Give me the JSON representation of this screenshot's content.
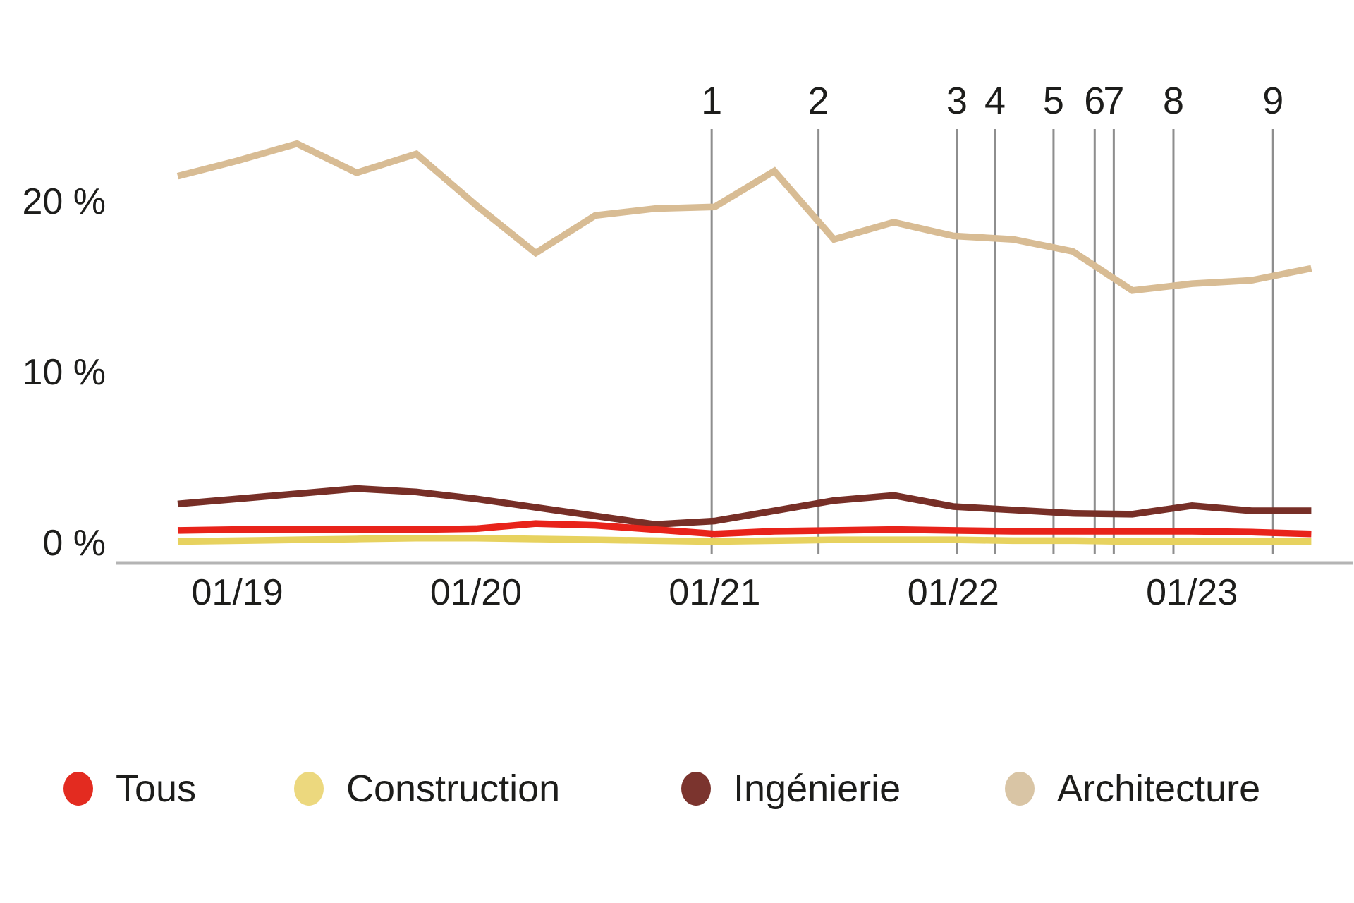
{
  "page": {
    "background": "#ffffff"
  },
  "chart_data": {
    "type": "line",
    "title": "",
    "x_axis": {
      "tick_labels": [
        "01/19",
        "01/20",
        "01/21",
        "01/22",
        "01/23"
      ],
      "tick_indices": [
        1,
        5,
        9,
        13,
        17
      ]
    },
    "y_axis": {
      "tick_labels": [
        "0 %",
        "10 %",
        "20 %"
      ],
      "tick_values": [
        0,
        10,
        20
      ]
    },
    "categories": [
      "10/2018",
      "01/2019",
      "04/2019",
      "07/2019",
      "10/2019",
      "01/2020",
      "04/2020",
      "07/2020",
      "10/2020",
      "01/2021",
      "04/2021",
      "07/2021",
      "10/2021",
      "01/2022",
      "04/2022",
      "07/2022",
      "10/2022",
      "01/2023",
      "04/2023",
      "07/2023"
    ],
    "series": [
      {
        "name": "Tous",
        "color": "#e8231a",
        "values": [
          0.75,
          0.8,
          0.8,
          0.8,
          0.8,
          0.85,
          1.15,
          1.05,
          0.8,
          0.55,
          0.7,
          0.75,
          0.8,
          0.75,
          0.7,
          0.7,
          0.7,
          0.7,
          0.65,
          0.55
        ]
      },
      {
        "name": "Construction",
        "color": "#e7d25f",
        "values": [
          0.1,
          0.15,
          0.2,
          0.25,
          0.3,
          0.3,
          0.25,
          0.2,
          0.15,
          0.1,
          0.15,
          0.2,
          0.2,
          0.2,
          0.15,
          0.15,
          0.1,
          0.1,
          0.1,
          0.1
        ]
      },
      {
        "name": "Ingénierie",
        "color": "#772f27",
        "values": [
          2.3,
          2.6,
          2.9,
          3.2,
          3.0,
          2.6,
          2.1,
          1.6,
          1.1,
          1.3,
          1.9,
          2.5,
          2.8,
          2.15,
          1.95,
          1.75,
          1.7,
          2.2,
          1.9,
          1.9
        ]
      },
      {
        "name": "Architecture",
        "color": "#d8bc94",
        "values": [
          21.5,
          22.4,
          23.4,
          21.7,
          22.8,
          19.8,
          17.0,
          19.2,
          19.6,
          19.7,
          21.8,
          17.8,
          18.8,
          18.0,
          17.8,
          17.1,
          14.8,
          15.2,
          15.4,
          16.1
        ]
      }
    ],
    "event_markers": [
      {
        "label": "1",
        "t": 8.95
      },
      {
        "label": "2",
        "t": 10.74
      },
      {
        "label": "3",
        "t": 13.06
      },
      {
        "label": "4",
        "t": 13.7
      },
      {
        "label": "5",
        "t": 14.68
      },
      {
        "label": "6",
        "t": 15.37
      },
      {
        "label": "7",
        "t": 15.69
      },
      {
        "label": "8",
        "t": 16.69
      },
      {
        "label": "9",
        "t": 18.36
      }
    ],
    "ylim": [
      0,
      25
    ],
    "grid": false,
    "legend_position": "bottom",
    "axis_color": "#b4b4b4",
    "marker_line_color": "#8e8e8e",
    "text_color": "#1d1d1b"
  },
  "legend": {
    "items": [
      {
        "label": "Tous",
        "color": "#e32b20"
      },
      {
        "label": "Construction",
        "color": "#ecd87e"
      },
      {
        "label": "Ingénierie",
        "color": "#7b342e"
      },
      {
        "label": "Architecture",
        "color": "#d9c5a5"
      }
    ]
  }
}
